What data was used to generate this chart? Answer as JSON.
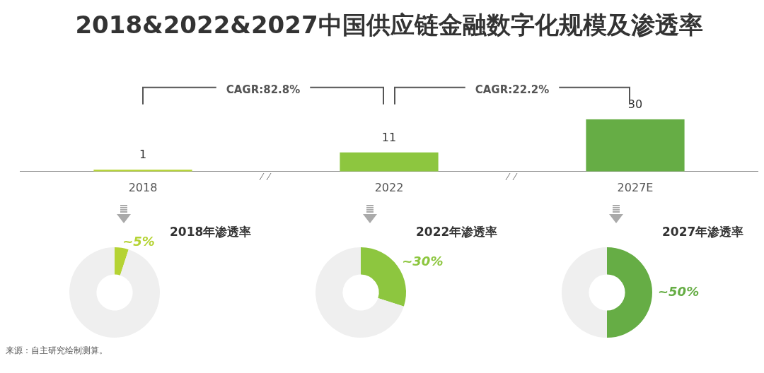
{
  "chart_data": [
    {
      "type": "bar",
      "title": "2018&2022&2027中国供应链金融数字化规模及渗透率",
      "categories": [
        "2018",
        "2022",
        "2027E"
      ],
      "values": [
        1,
        11,
        30
      ],
      "colors": [
        "#b5d334",
        "#8dc63f",
        "#66ad45"
      ],
      "data_labels": true,
      "annotations": [
        "CAGR:82.8%",
        "CAGR:22.2%",
        "来源：自主研究绘制测算。"
      ]
    },
    {
      "type": "donut",
      "title": "2018年渗透率",
      "categories": [
        null,
        null
      ],
      "values": [
        5,
        95
      ],
      "colors": [
        "#b5d334",
        "#efefef"
      ],
      "value_labels": [
        "~5%",
        null
      ]
    },
    {
      "type": "donut",
      "title": "2022年渗透率",
      "categories": [
        null,
        null
      ],
      "values": [
        30,
        70
      ],
      "colors": [
        "#8dc63f",
        "#efefef"
      ],
      "value_labels": [
        "~30%",
        null
      ]
    },
    {
      "type": "donut",
      "title": "2027年渗透率",
      "categories": [
        null,
        null
      ],
      "values": [
        50,
        50
      ],
      "colors": [
        "#66ad45",
        "#efefef"
      ],
      "value_labels": [
        "~50%",
        null
      ]
    }
  ]
}
